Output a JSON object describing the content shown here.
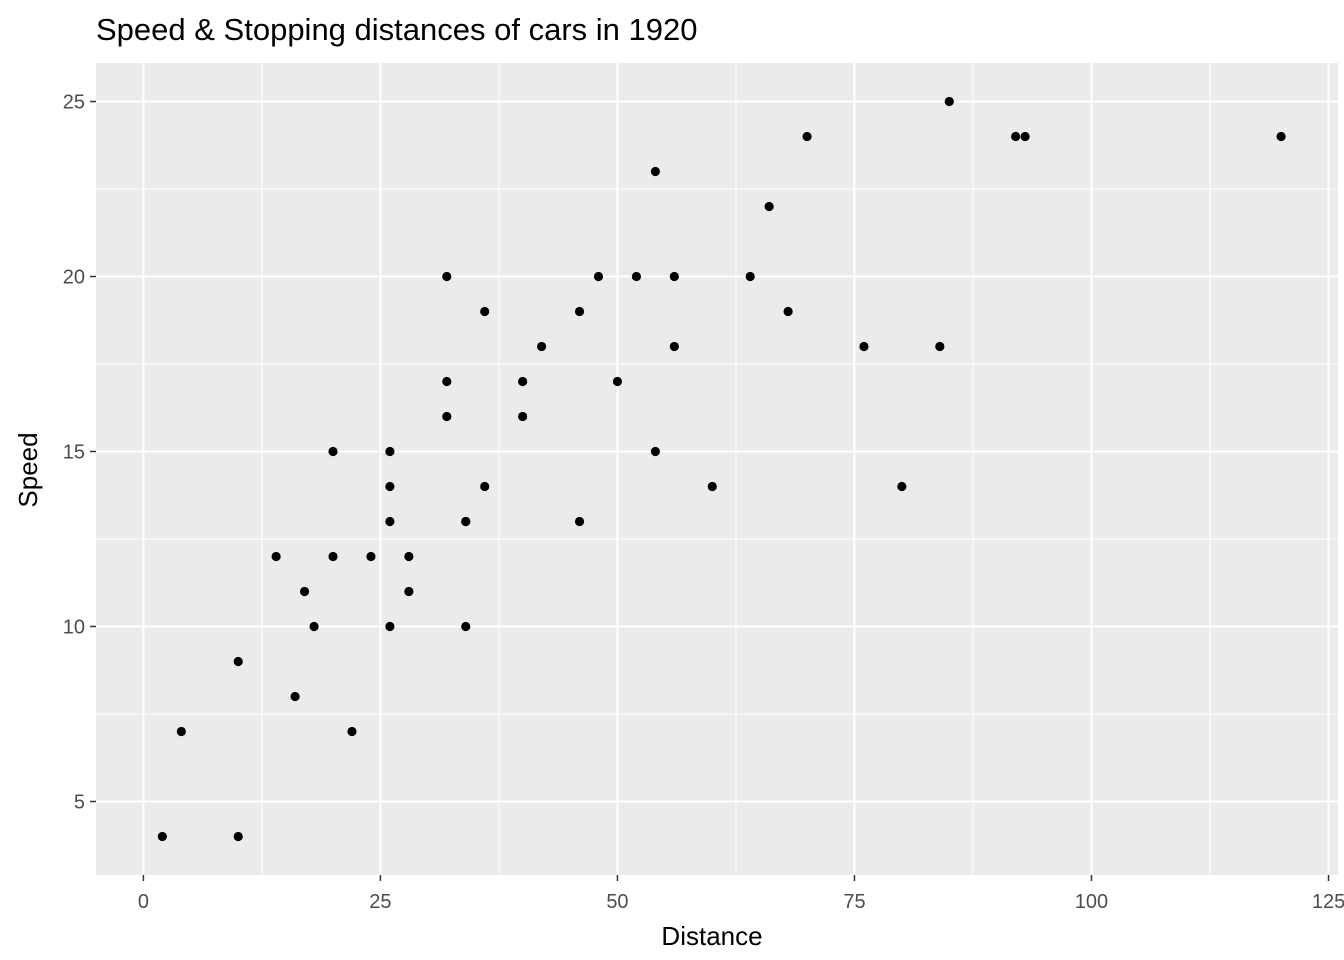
{
  "chart_data": {
    "type": "scatter",
    "title": "Speed & Stopping distances of cars in 1920",
    "xlabel": "Distance",
    "ylabel": "Speed",
    "xlim": [
      -5,
      126
    ],
    "ylim": [
      2.9,
      26.1
    ],
    "x_ticks": [
      0,
      25,
      50,
      75,
      100,
      125
    ],
    "x_tick_labels": [
      "0",
      "25",
      "50",
      "75",
      "100",
      "125"
    ],
    "x_minor_ticks": [
      12.5,
      37.5,
      62.5,
      87.5,
      112.5
    ],
    "y_ticks": [
      5,
      10,
      15,
      20,
      25
    ],
    "y_tick_labels": [
      "5",
      "10",
      "15",
      "20",
      "25"
    ],
    "y_minor_ticks": [
      7.5,
      12.5,
      17.5,
      22.5
    ],
    "grid": true,
    "legend": "none",
    "colors": {
      "panel": "#ebebeb",
      "grid": "#ffffff",
      "point": "#000000",
      "tick_text": "#4d4d4d",
      "tick_mark": "#333333"
    },
    "points": [
      {
        "x": 2,
        "y": 4
      },
      {
        "x": 10,
        "y": 4
      },
      {
        "x": 4,
        "y": 7
      },
      {
        "x": 22,
        "y": 7
      },
      {
        "x": 16,
        "y": 8
      },
      {
        "x": 10,
        "y": 9
      },
      {
        "x": 18,
        "y": 10
      },
      {
        "x": 26,
        "y": 10
      },
      {
        "x": 34,
        "y": 10
      },
      {
        "x": 17,
        "y": 11
      },
      {
        "x": 28,
        "y": 11
      },
      {
        "x": 14,
        "y": 12
      },
      {
        "x": 20,
        "y": 12
      },
      {
        "x": 24,
        "y": 12
      },
      {
        "x": 28,
        "y": 12
      },
      {
        "x": 26,
        "y": 13
      },
      {
        "x": 34,
        "y": 13
      },
      {
        "x": 34,
        "y": 13
      },
      {
        "x": 46,
        "y": 13
      },
      {
        "x": 26,
        "y": 14
      },
      {
        "x": 36,
        "y": 14
      },
      {
        "x": 60,
        "y": 14
      },
      {
        "x": 80,
        "y": 14
      },
      {
        "x": 20,
        "y": 15
      },
      {
        "x": 26,
        "y": 15
      },
      {
        "x": 54,
        "y": 15
      },
      {
        "x": 32,
        "y": 16
      },
      {
        "x": 40,
        "y": 16
      },
      {
        "x": 32,
        "y": 17
      },
      {
        "x": 40,
        "y": 17
      },
      {
        "x": 50,
        "y": 17
      },
      {
        "x": 42,
        "y": 18
      },
      {
        "x": 56,
        "y": 18
      },
      {
        "x": 76,
        "y": 18
      },
      {
        "x": 84,
        "y": 18
      },
      {
        "x": 36,
        "y": 19
      },
      {
        "x": 46,
        "y": 19
      },
      {
        "x": 68,
        "y": 19
      },
      {
        "x": 32,
        "y": 20
      },
      {
        "x": 48,
        "y": 20
      },
      {
        "x": 52,
        "y": 20
      },
      {
        "x": 56,
        "y": 20
      },
      {
        "x": 64,
        "y": 20
      },
      {
        "x": 66,
        "y": 22
      },
      {
        "x": 54,
        "y": 23
      },
      {
        "x": 70,
        "y": 24
      },
      {
        "x": 92,
        "y": 24
      },
      {
        "x": 93,
        "y": 24
      },
      {
        "x": 120,
        "y": 24
      },
      {
        "x": 85,
        "y": 25
      }
    ]
  }
}
